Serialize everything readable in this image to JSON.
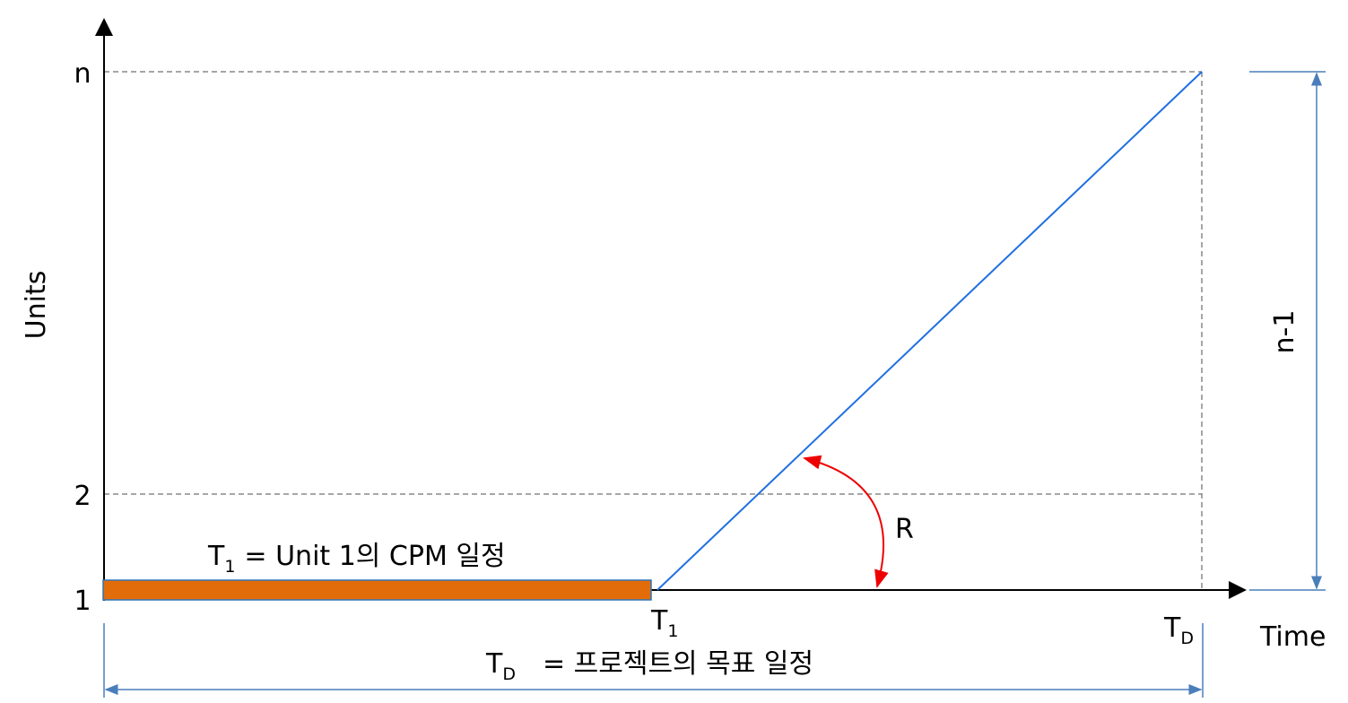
{
  "axes": {
    "y_label": "Units",
    "x_label": "Time",
    "y_ticks": [
      "n",
      "2",
      "1"
    ]
  },
  "bar_label": {
    "symbol": "T",
    "subscript": "1",
    "text": "= Unit 1의 CPM 일정"
  },
  "rate_label": "R",
  "height_label": "n-1",
  "t1_label": {
    "symbol": "T",
    "subscript": "1"
  },
  "td_label": {
    "symbol": "T",
    "subscript": "D"
  },
  "duration_label": {
    "symbol": "T",
    "subscript": "D",
    "text": "= 프로젝트의 목표 일정"
  }
}
